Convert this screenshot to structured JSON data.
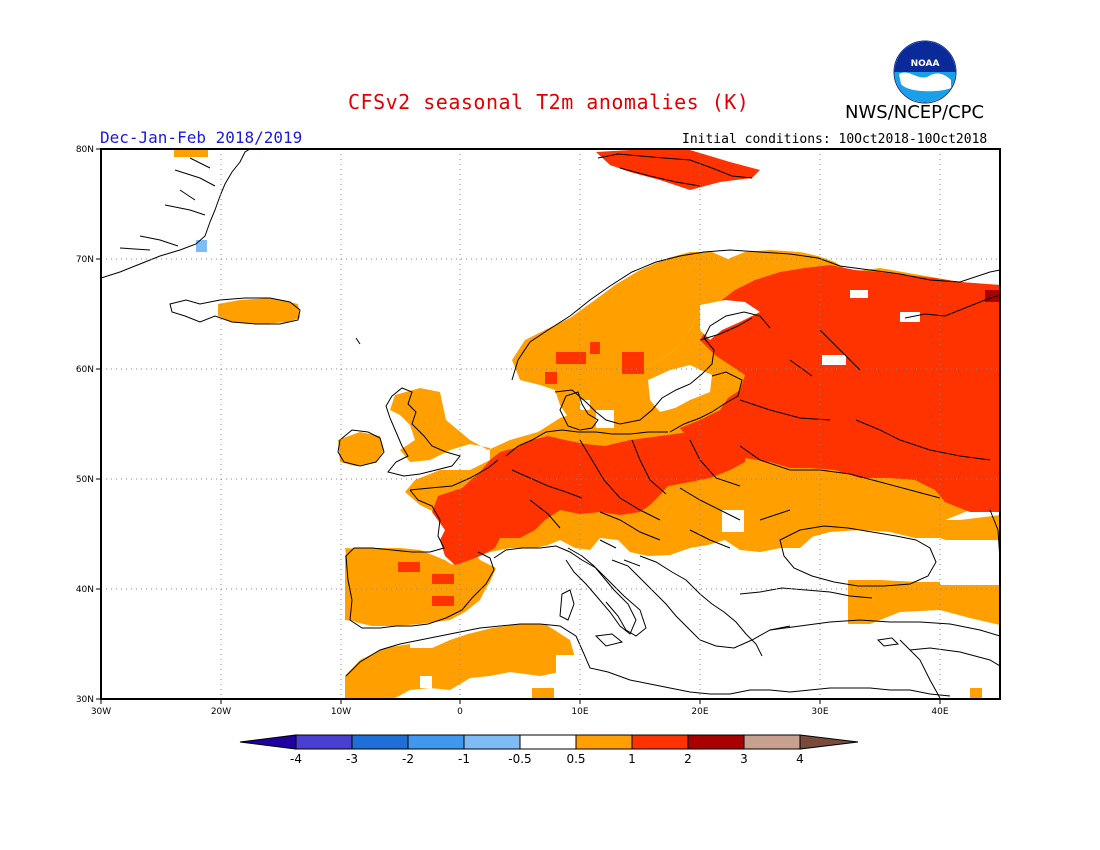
{
  "title": "CFSv2 seasonal T2m anomalies (K)",
  "agency": "NWS/NCEP/CPC",
  "logo_text": "NOAA",
  "season": "Dec-Jan-Feb 2018/2019",
  "initial_conditions": "Initial conditions: 10Oct2018-10Oct2018",
  "map": {
    "lon_range": [
      -30,
      45
    ],
    "lat_range": [
      30,
      80
    ],
    "lon_ticks": [
      "30W",
      "20W",
      "10W",
      "0",
      "10E",
      "20E",
      "30E",
      "40E"
    ],
    "lat_ticks": [
      "30N",
      "40N",
      "50N",
      "60N",
      "70N",
      "80N"
    ]
  },
  "colorbar": {
    "labels": [
      "-4",
      "-3",
      "-2",
      "-1",
      "-0.5",
      "0.5",
      "1",
      "2",
      "3",
      "4"
    ],
    "colors": [
      "#2000a0",
      "#4b3fd0",
      "#1f6fd8",
      "#3f97ee",
      "#7fbcf6",
      "#ffffff",
      "#ffa000",
      "#ff3300",
      "#a80000",
      "#c8a090",
      "#7a4a3a"
    ]
  }
}
